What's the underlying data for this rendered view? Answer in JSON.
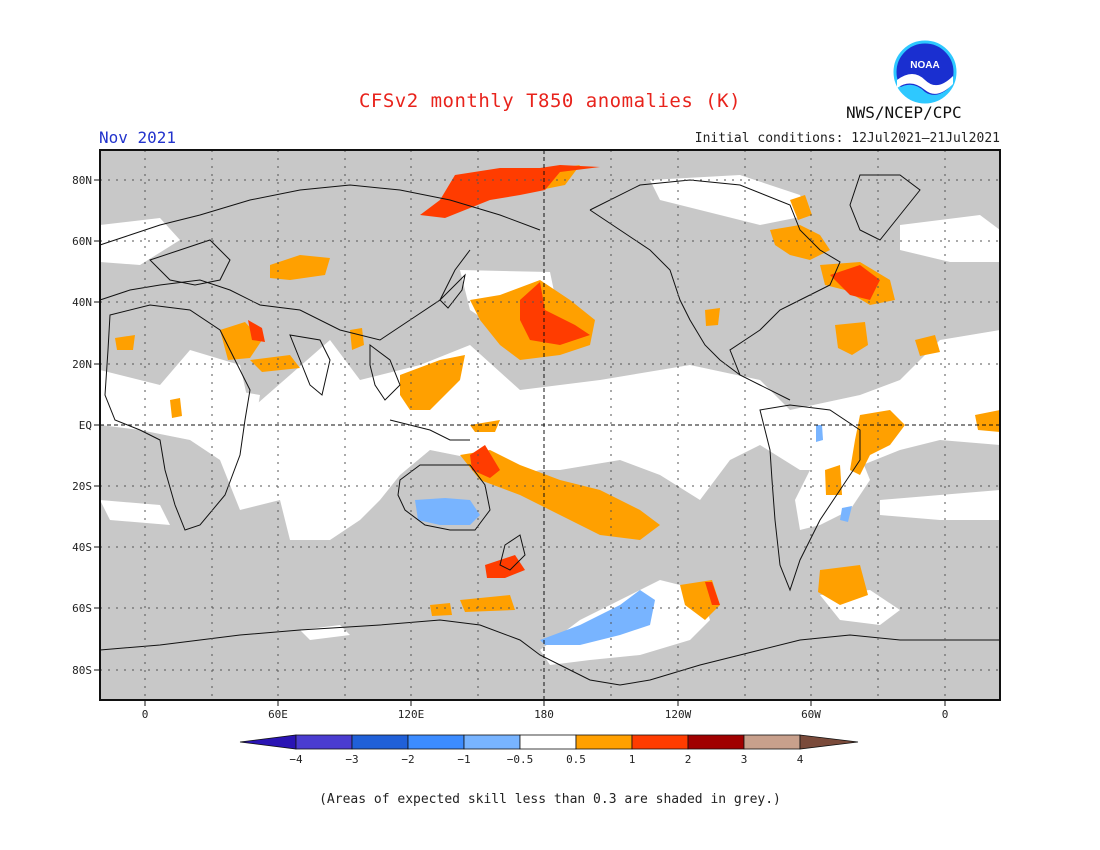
{
  "header": {
    "title": "CFSv2 monthly T850 anomalies (K)",
    "agency": "NWS/NCEP/CPC",
    "logo_text": "NOAA",
    "month": "Nov 2021",
    "initial_conditions": "Initial conditions: 12Jul2021–21Jul2021"
  },
  "map": {
    "lat_labels": [
      "80N",
      "60N",
      "40N",
      "20N",
      "EQ",
      "20S",
      "40S",
      "60S",
      "80S"
    ],
    "lon_labels": [
      "0",
      "60E",
      "120E",
      "180",
      "120W",
      "60W",
      "0"
    ],
    "colors": {
      "grey": "#c8c8c8",
      "orange": "#ffa000",
      "red_orange": "#ff3c00",
      "dark_red": "#a00000",
      "light_blue": "#78b4ff",
      "mid_blue": "#3c8cff",
      "coast": "#111111"
    }
  },
  "legend": {
    "labels": [
      "−4",
      "−3",
      "−2",
      "−1",
      "−0.5",
      "0.5",
      "1",
      "2",
      "3",
      "4"
    ],
    "colors": [
      "#2a14b4",
      "#4a3cd0",
      "#2060d8",
      "#3c8cff",
      "#78b4ff",
      "#ffffff",
      "#ffa000",
      "#ff3c00",
      "#a00000",
      "#c8a08c",
      "#7a4a3a"
    ]
  },
  "footnote": "(Areas of expected skill less than 0.3 are shaded in grey.)"
}
